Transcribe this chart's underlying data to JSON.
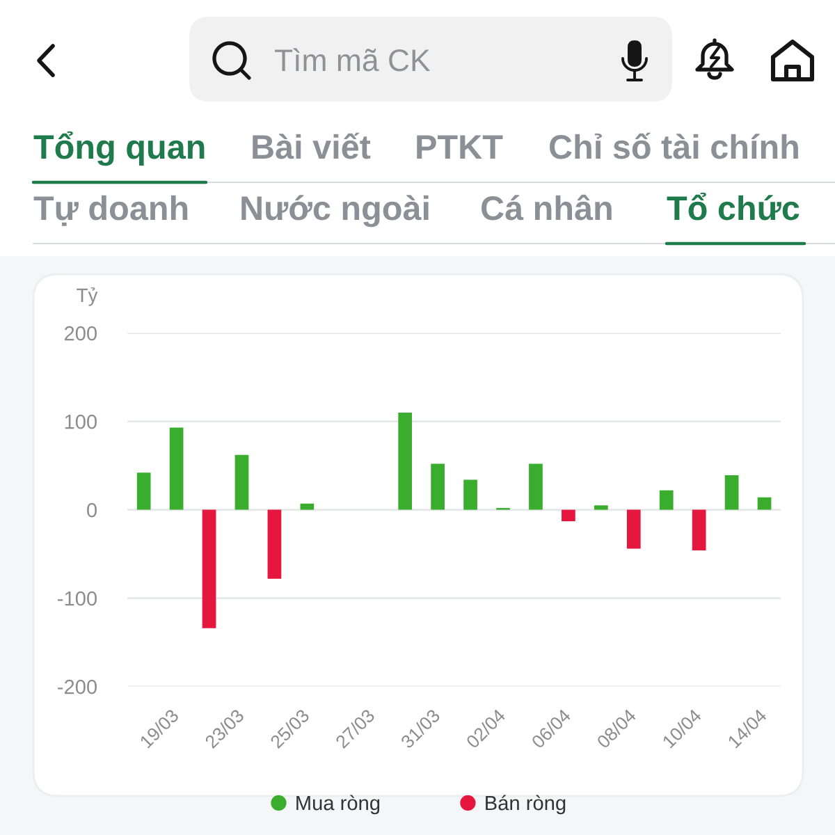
{
  "chart_data": {
    "type": "bar",
    "stacked": true,
    "ylabel": "Tỷ",
    "categories": [
      null,
      "19/03",
      null,
      "23/03",
      null,
      "25/03",
      null,
      "27/03",
      null,
      "31/03",
      null,
      "02/04",
      null,
      "06/04",
      null,
      "08/04",
      null,
      "10/04",
      null,
      "14/04"
    ],
    "series": [
      {
        "name": "Mua ròng",
        "color": "#3aad2f",
        "values": [
          42,
          93,
          null,
          62,
          null,
          7,
          null,
          null,
          110,
          52,
          34,
          2,
          52,
          null,
          5,
          null,
          22,
          null,
          39,
          14
        ]
      },
      {
        "name": "Bán ròng",
        "color": "#e5173f",
        "values": [
          null,
          null,
          -134,
          null,
          -78,
          null,
          null,
          null,
          null,
          null,
          null,
          null,
          null,
          -13,
          null,
          -44,
          null,
          -46,
          null,
          null
        ]
      }
    ],
    "ylim": [
      -200,
      200
    ],
    "yticks": [
      -200,
      -100,
      0,
      100,
      200
    ],
    "grid": "y",
    "legend": "bottom",
    "annotations": [
      "Tìm mã CK",
      "Tổng quan",
      "Bài viết",
      "PTKT",
      "Chỉ số tài chính",
      "Tự doanh",
      "Nước ngoài",
      "Cá nhân",
      "Tổ chức"
    ]
  }
}
